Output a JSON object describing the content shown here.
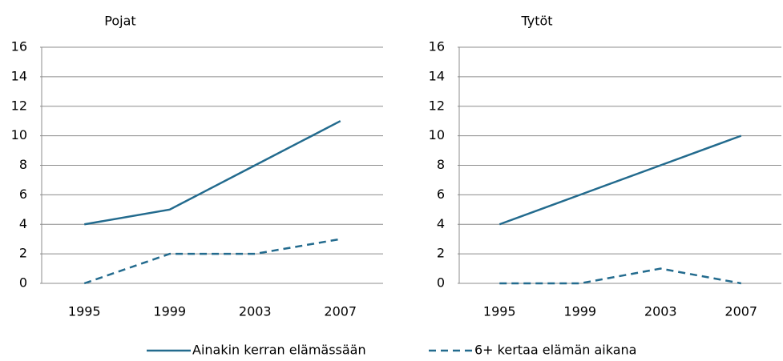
{
  "chart_data": [
    {
      "type": "line",
      "title": "Pojat",
      "categories": [
        "1995",
        "1999",
        "2003",
        "2007"
      ],
      "series": [
        {
          "name": "Ainakin kerran elämässään",
          "color": "#236b8e",
          "style": "solid",
          "values": [
            4,
            5,
            8,
            11
          ]
        },
        {
          "name": "6+ kertaa elämän aikana",
          "color": "#236b8e",
          "style": "dashed",
          "values": [
            0,
            2,
            2,
            3
          ]
        }
      ],
      "ylim": [
        0,
        16
      ],
      "yticks": [
        0,
        2,
        4,
        6,
        8,
        10,
        12,
        14,
        16
      ],
      "grid": true
    },
    {
      "type": "line",
      "title": "Tytöt",
      "categories": [
        "1995",
        "1999",
        "2003",
        "2007"
      ],
      "series": [
        {
          "color": "#236b8e",
          "style": "solid",
          "values": [
            4,
            6,
            8,
            10
          ]
        },
        {
          "color": "#236b8e",
          "style": "dashed",
          "values": [
            0,
            0,
            1,
            0
          ]
        }
      ],
      "ylim": [
        0,
        16
      ],
      "yticks": [
        0,
        2,
        4,
        6,
        8,
        10,
        12,
        14,
        16
      ],
      "grid": true
    }
  ]
}
